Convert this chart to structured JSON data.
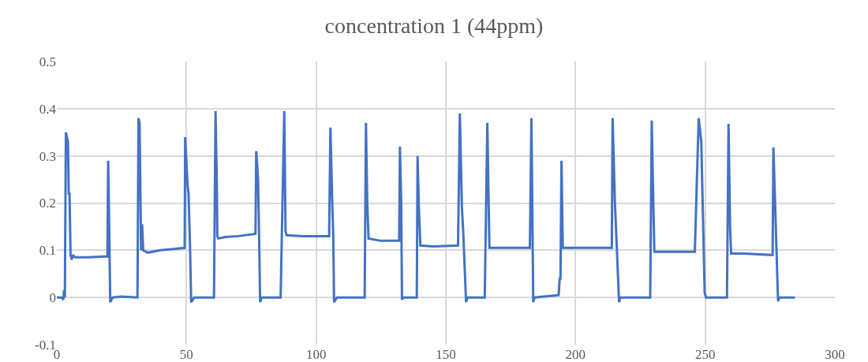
{
  "chart_data": {
    "type": "line",
    "title": "concentration 1 (44ppm)",
    "series": [
      {
        "color": "#4472c4",
        "x": [
          0,
          2,
          2.5,
          2.8,
          3.1,
          3.5,
          4.3,
          4.6,
          4.9,
          5.3,
          5.7,
          6.2,
          7,
          12,
          19.5,
          19.8,
          20.2,
          20.6,
          21.5,
          25,
          31.1,
          31.5,
          31.9,
          32.5,
          32.9,
          33.3,
          35,
          40,
          49.3,
          49.5,
          50.4,
          50.8,
          51.4,
          51.8,
          53,
          60.6,
          61.2,
          61.7,
          61.9,
          62.3,
          65,
          70,
          76.6,
          76.9,
          77.6,
          78,
          78.4,
          79,
          86.3,
          87.7,
          88.2,
          88.6,
          95,
          105,
          105.5,
          106.2,
          106.6,
          106.9,
          108,
          118.7,
          119.2,
          119.7,
          120.2,
          125,
          132,
          132.3,
          132.8,
          133.1,
          133.5,
          138.8,
          139.1,
          139.6,
          140.2,
          145,
          154.7,
          155.4,
          156.2,
          156.7,
          157.8,
          158.3,
          165,
          166,
          166.8,
          170,
          182.4,
          183,
          183.7,
          184.2,
          193.5,
          193.9,
          194.2,
          194.6,
          195.1,
          200,
          214,
          214.3,
          215.2,
          216.8,
          217.3,
          228.8,
          229.4,
          230,
          230.4,
          240,
          246,
          247.5,
          248.5,
          249.8,
          250.3,
          258.4,
          259,
          259.6,
          260,
          265,
          276,
          276.3,
          277.5,
          278.1,
          278.6,
          284.6
        ],
        "values": [
          0,
          0,
          -0.005,
          0.015,
          0,
          0.35,
          0.33,
          0.22,
          0.22,
          0.09,
          0.08,
          0.09,
          0.085,
          0.085,
          0.087,
          0.29,
          0.15,
          -0.01,
          0,
          0.002,
          0,
          0.38,
          0.37,
          0.1,
          0.155,
          0.1,
          0.095,
          0.1,
          0.105,
          0.34,
          0.24,
          0.22,
          0.1,
          -0.01,
          0,
          0,
          0.395,
          0.24,
          0.13,
          0.125,
          0.128,
          0.13,
          0.135,
          0.31,
          0.25,
          0.13,
          -0.01,
          0,
          0,
          0.395,
          0.14,
          0.132,
          0.13,
          0.13,
          0.36,
          0.2,
          0.13,
          -0.01,
          0,
          0,
          0.37,
          0.2,
          0.125,
          0.12,
          0.12,
          0.32,
          0.2,
          -0.005,
          0,
          0,
          0.3,
          0.19,
          0.11,
          0.108,
          0.11,
          0.39,
          0.19,
          0.14,
          -0.01,
          0,
          0,
          0.37,
          0.105,
          0.105,
          0.105,
          0.38,
          -0.01,
          0,
          0.005,
          0.04,
          0.04,
          0.29,
          0.105,
          0.105,
          0.105,
          0.38,
          0.2,
          -0.01,
          0,
          0,
          0.375,
          0.2,
          0.097,
          0.097,
          0.097,
          0.38,
          0.33,
          0.01,
          0,
          0,
          0.368,
          0.15,
          0.093,
          0.093,
          0.09,
          0.318,
          0.1,
          -0.008,
          0,
          0
        ]
      }
    ],
    "xlim": [
      0,
      300
    ],
    "xticks": [
      0,
      50,
      100,
      150,
      200,
      250,
      300
    ],
    "ylim": [
      -0.1,
      0.5
    ],
    "yticks": [
      {
        "value": -0.1,
        "label": "-0.1"
      },
      {
        "value": 0,
        "label": "0"
      },
      {
        "value": 0.1,
        "label": "0.1"
      },
      {
        "value": 0.2,
        "label": "0.2"
      },
      {
        "value": 0.3,
        "label": "0.3"
      },
      {
        "value": 0.4,
        "label": "0.4"
      },
      {
        "value": 0.5,
        "label": "0.5"
      }
    ],
    "grid": true,
    "marker": "none",
    "line_style": "solid"
  }
}
